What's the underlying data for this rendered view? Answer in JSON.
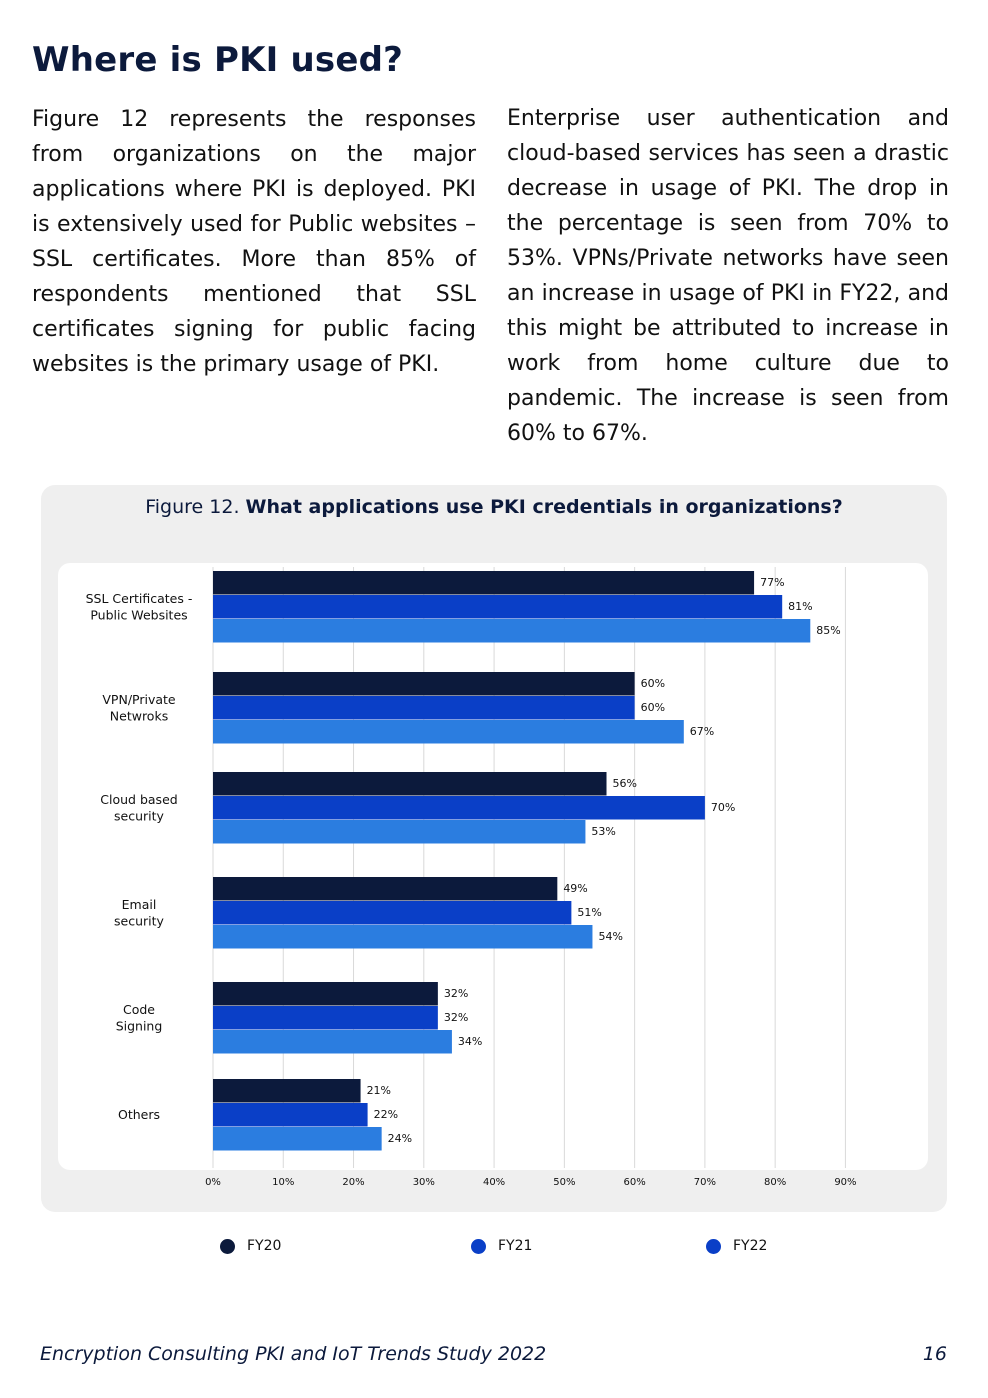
{
  "heading": "Where is PKI used?",
  "paragraph_left": "Figure 12 represents the responses from organizations on the major applications where PKI is deployed. PKI is extensively used for Public websites – SSL certificates. More than 85% of respondents mentioned that SSL certificates signing for public facing websites is the primary usage of PKI.",
  "paragraph_right": "Enterprise user authentication and cloud-based services has seen a drastic decrease in usage of PKI. The drop in the percentage is seen from 70% to 53%. VPNs/Private networks have seen an increase in usage of PKI in FY22, and this might be attributed to increase in work from home culture due to pandemic. The increase is seen from 60% to 67%.",
  "figure_label": "Figure 12.",
  "colors": {
    "heading": "#0c1a3c",
    "panel_bg": "#efefef",
    "grid": "#d9d9d9"
  },
  "chart_data": {
    "type": "bar",
    "orientation": "horizontal",
    "title": "What applications use PKI credentials in organizations?",
    "categories": [
      [
        "SSL Certificates -",
        "Public Websites"
      ],
      [
        "VPN/Private",
        "Netwroks"
      ],
      [
        "Cloud based",
        "security"
      ],
      [
        "Email",
        "security"
      ],
      [
        "Code",
        "Signing"
      ],
      [
        "Others"
      ]
    ],
    "series": [
      {
        "name": "FY20",
        "color": "#0c1a3c",
        "values": [
          77,
          60,
          56,
          49,
          32,
          21
        ]
      },
      {
        "name": "FY21",
        "color": "#0a3fc7",
        "values": [
          81,
          60,
          70,
          51,
          32,
          22
        ]
      },
      {
        "name": "FY22",
        "color": "#2b7de0",
        "values": [
          85,
          67,
          53,
          54,
          34,
          24
        ]
      }
    ],
    "legend_dot_colors": [
      "#0c1a3c",
      "#0a3fc7",
      "#0a3fc7"
    ],
    "value_suffix": "%",
    "x_ticks": [
      "0%",
      "10%",
      "20%",
      "30%",
      "40%",
      "50%",
      "60%",
      "70%",
      "80%",
      "90%"
    ],
    "xlim": [
      0,
      90
    ],
    "grid": true,
    "legend_position": "bottom"
  },
  "footer": "Encryption Consulting PKI and IoT Trends Study 2022",
  "page_number": "16"
}
